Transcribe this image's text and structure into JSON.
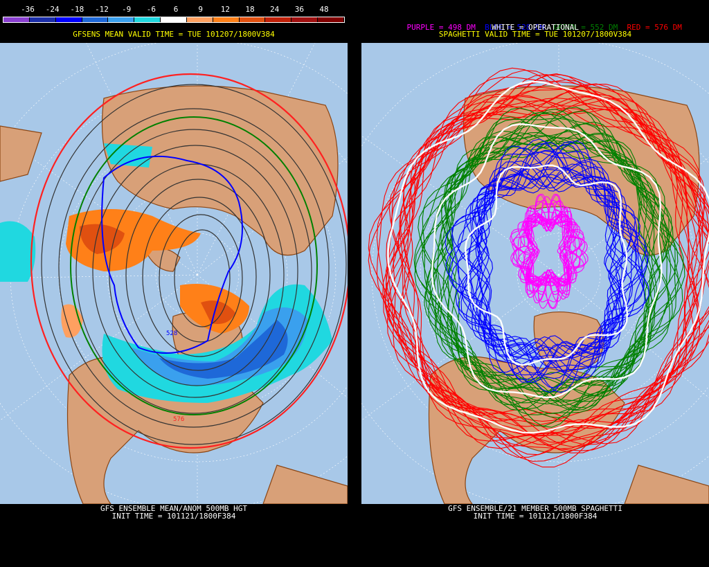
{
  "left": {
    "colorbar_ticks": [
      "-36",
      "-24",
      "-18",
      "-12",
      "-9",
      "-6",
      "6",
      "9",
      "12",
      "18",
      "24",
      "36",
      "48"
    ],
    "colorbar_colors": [
      "#8a3fd0",
      "#1b2ea8",
      "#0000ff",
      "#1e68d8",
      "#3aa0ee",
      "#20d8e0",
      "#ffffff",
      "#ffa060",
      "#ff8018",
      "#e05010",
      "#c02008",
      "#a01010",
      "#800000"
    ],
    "title": "GFSENS MEAN VALID TIME = TUE 101207/1800V384",
    "contour_labels": [
      "528",
      "576"
    ],
    "footer_line1": "GFS ENSEMBLE MEAN/ANOM 500MB HGT",
    "footer_line2": "INIT TIME = 101121/1800F384"
  },
  "right": {
    "legend": [
      {
        "text": "PURPLE = 498 DM",
        "color": "#ff00ff"
      },
      {
        "text": "BLUE = 528 DM",
        "color": "#0000ff"
      },
      {
        "text": "GREEN = 552 DM",
        "color": "#008000"
      },
      {
        "text": "RED = 576 DM",
        "color": "#ff0000"
      }
    ],
    "operational_label": "WHITE = OPERATIONAL",
    "title": "SPAGHETTI VALID TIME = TUE 101207/1800V384",
    "footer_line1": "GFS ENSEMBLE/21 MEMBER 500MB SPAGHETTI",
    "footer_line2": "INIT TIME = 101121/1800F384"
  },
  "colors": {
    "ocean": "#a8c8e8",
    "land": "#d8a078",
    "border": "#8b4513",
    "title_yellow": "#ffff00",
    "footer_white": "#ffffff"
  }
}
